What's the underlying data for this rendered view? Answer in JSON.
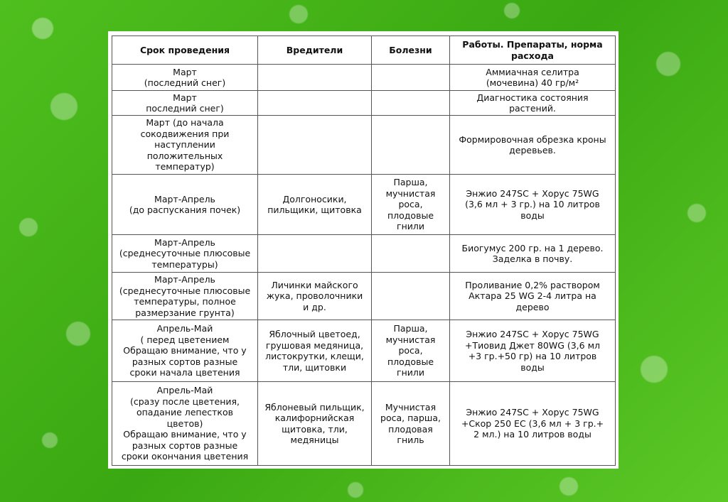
{
  "table": {
    "header": [
      "Срок проведения",
      "Вредители",
      "Болезни",
      "Работы. Препараты, норма\nрасхода"
    ],
    "rows": [
      [
        "Март\n(последний снег)",
        null,
        null,
        "Аммиачная селитра\n(мочевина) 40 гр/м²"
      ],
      [
        "Март\nпоследний снег)",
        null,
        null,
        "Диагностика состояния\nрастений."
      ],
      [
        "Март (до начала\nсокодвижения при\nнаступлении\nположительных\nтемператур)",
        null,
        null,
        "Формировочная обрезка кроны\nдеревьев."
      ],
      [
        "Март-Апрель\n(до распускания почек)",
        "Долгоносики,\nпильщики, щитовка",
        "Парша,\nмучнистая\nроса,\nплодовые\nгнили",
        "Энжио 247SC + Хорус 75WG\n(3,6 мл + 3 гр.) на 10 литров\nводы"
      ],
      [
        "Март-Апрель\n(среднесуточные плюсовые\nтемпературы)",
        null,
        null,
        "Биогумус 200 гр. на 1 дерево.\nЗаделка в почву."
      ],
      [
        "Март-Апрель\n(среднесуточные плюсовые\nтемпературы, полное\nразмерзание грунта)",
        "Личинки майского\nжука, проволочники\nи др.",
        null,
        "Проливание  0,2% раствором\nАктара 25 WG  2-4 литра на\nдерево"
      ],
      [
        "Апрель-Май\n( перед цветением\nОбращаю внимание, что у\nразных сортов разные\nсроки начала цветения",
        "Яблочный цветоед,\nгрушовая медяница,\nлистокрутки, клещи,\nтли, щитовки",
        "Парша,\nмучнистая\nроса,\nплодовые\nгнили",
        "Энжио 247SC + Хорус 75WG\n+Тиовид Джет 80WG (3,6 мл\n+3 гр.+50 гр) на 10 литров\nводы"
      ],
      [
        "Апрель-Май\n(сразу после цветения,\nопадание лепестков\nцветов)\nОбращаю внимание, что у\nразных сортов разные\nсроки окончания цветения",
        "Яблоневый пильщик,\nкалифорнийская\nщитовка, тли,\nмедяницы",
        "Мучнистая\nроса, парша,\nплодовая\nгниль",
        "Энжио 247SC + Хорус 75WG\n+Скор 250 ЕС (3,6 мл + 3 гр.+\n2 мл.) на 10 литров воды"
      ]
    ]
  }
}
